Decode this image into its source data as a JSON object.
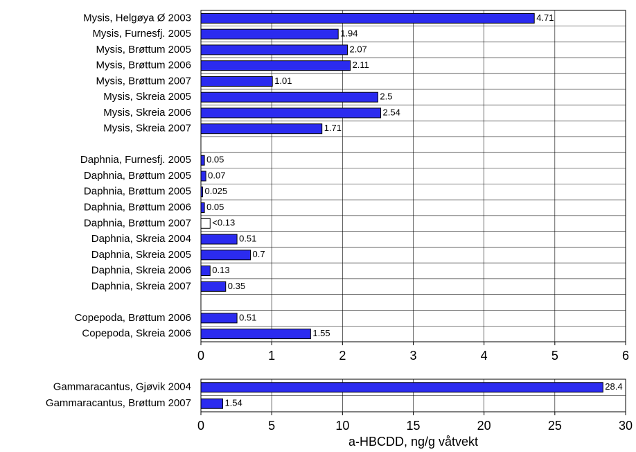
{
  "chart_data": [
    {
      "type": "bar",
      "orientation": "horizontal",
      "categories": [
        "Mysis, Helgøya Ø 2003",
        "Mysis, Furnesfj. 2005",
        "Mysis, Brøttum 2005",
        "Mysis, Brøttum 2006",
        "Mysis, Brøttum 2007",
        "Mysis, Skreia 2005",
        "Mysis, Skreia 2006",
        "Mysis, Skreia 2007",
        null,
        "Daphnia, Furnesfj. 2005",
        "Daphnia, Brøttum 2005",
        "Daphnia, Brøttum 2005",
        "Daphnia, Brøttum 2006",
        "Daphnia, Brøttum 2007",
        "Daphnia, Skreia 2004",
        "Daphnia, Skreia 2005",
        "Daphnia, Skreia 2006",
        "Daphnia, Skreia 2007",
        null,
        "Copepoda, Brøttum 2006",
        "Copepoda, Skreia 2006"
      ],
      "values": [
        4.71,
        1.94,
        2.07,
        2.11,
        1.01,
        2.5,
        2.54,
        1.71,
        null,
        0.05,
        0.07,
        0.025,
        0.05,
        0.13,
        0.51,
        0.7,
        0.13,
        0.35,
        null,
        0.51,
        1.55
      ],
      "value_labels": [
        "4.71",
        "1.94",
        "2.07",
        "2.11",
        "1.01",
        "2.5",
        "2.54",
        "1.71",
        null,
        "0.05",
        "0.07",
        "0.025",
        "0.05",
        "<0.13",
        "0.51",
        "0.7",
        "0.13",
        "0.35",
        null,
        "0.51",
        "1.55"
      ],
      "colors": [
        "#2b2bef",
        "#2b2bef",
        "#2b2bef",
        "#2b2bef",
        "#2b2bef",
        "#2b2bef",
        "#2b2bef",
        "#2b2bef",
        null,
        "#2b2bef",
        "#2b2bef",
        "#2b2bef",
        "#2b2bef",
        "#ffffff",
        "#2b2bef",
        "#2b2bef",
        "#2b2bef",
        "#2b2bef",
        null,
        "#2b2bef",
        "#2b2bef"
      ],
      "xlim": [
        0,
        6
      ],
      "xticks": [
        0,
        1,
        2,
        3,
        4,
        5,
        6
      ],
      "grid": true
    },
    {
      "type": "bar",
      "orientation": "horizontal",
      "categories": [
        "Gammaracantus, Gjøvik 2004",
        "Gammaracantus, Brøttum 2007"
      ],
      "values": [
        28.4,
        1.54
      ],
      "value_labels": [
        "28.4",
        "1.54"
      ],
      "colors": [
        "#2b2bef",
        "#2b2bef"
      ],
      "xlim": [
        0,
        30
      ],
      "xticks": [
        0,
        5,
        10,
        15,
        20,
        25,
        30
      ],
      "grid": true,
      "xlabel": "a-HBCDD, ng/g våtvekt"
    }
  ]
}
